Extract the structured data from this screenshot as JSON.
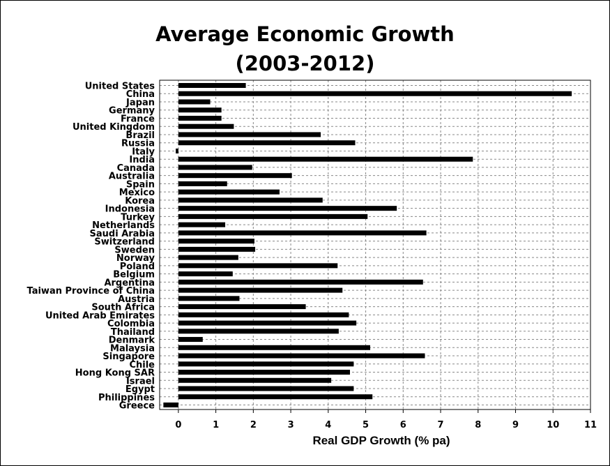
{
  "chart_data": {
    "type": "bar",
    "orientation": "horizontal",
    "title": "Average Economic Growth",
    "subtitle": "(2003-2012)",
    "xlabel": "Real GDP Growth (% pa)",
    "ylabel": "",
    "xlim": [
      -0.5,
      11
    ],
    "xticks": [
      0,
      1,
      2,
      3,
      4,
      5,
      6,
      7,
      8,
      9,
      10,
      11
    ],
    "grid": true,
    "legend": "none",
    "bar_color": "#000000",
    "categories": [
      "United States",
      "China",
      "Japan",
      "Germany",
      "France",
      "United Kingdom",
      "Brazil",
      "Russia",
      "Italy",
      "India",
      "Canada",
      "Australia",
      "Spain",
      "Mexico",
      "Korea",
      "Indonesia",
      "Turkey",
      "Netherlands",
      "Saudi Arabia",
      "Switzerland",
      "Sweden",
      "Norway",
      "Poland",
      "Belgium",
      "Argentina",
      "Taiwan Province of China",
      "Austria",
      "South Africa",
      "United Arab Emirates",
      "Colombia",
      "Thailand",
      "Denmark",
      "Malaysia",
      "Singapore",
      "Chile",
      "Hong Kong SAR",
      "Israel",
      "Egypt",
      "Philippines",
      "Greece"
    ],
    "values": [
      1.8,
      10.5,
      0.85,
      1.15,
      1.15,
      1.48,
      3.8,
      4.72,
      -0.07,
      7.86,
      1.97,
      3.03,
      1.3,
      2.7,
      3.85,
      5.83,
      5.05,
      1.25,
      6.62,
      2.03,
      2.05,
      1.6,
      4.25,
      1.45,
      6.53,
      4.38,
      1.63,
      3.4,
      4.55,
      4.75,
      4.28,
      0.65,
      5.12,
      6.58,
      4.68,
      4.58,
      4.08,
      4.68,
      5.18,
      -0.4
    ]
  }
}
